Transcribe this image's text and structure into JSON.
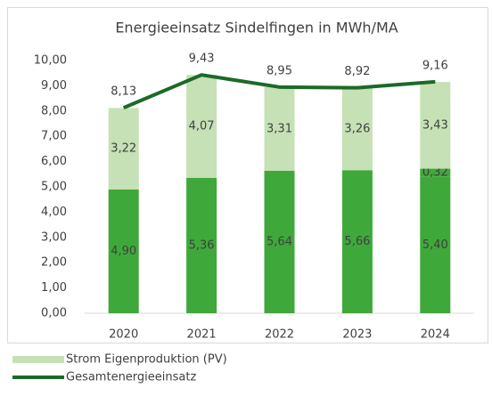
{
  "chart_data": {
    "type": "bar",
    "title": "Energieeinsatz Sindelfingen in MWh/MA",
    "categories": [
      "2020",
      "2021",
      "2022",
      "2023",
      "2024"
    ],
    "stacked": true,
    "series": [
      {
        "color": "#3ea93a",
        "values": [
          4.9,
          5.36,
          5.64,
          5.66,
          5.4
        ],
        "value_labels": [
          "4,90",
          "5,36",
          "5,64",
          "5,66",
          "5,40"
        ]
      },
      {
        "color": "#3ea93a",
        "values": [
          null,
          null,
          null,
          null,
          0.32
        ],
        "value_labels": [
          null,
          null,
          null,
          null,
          "0,32"
        ]
      },
      {
        "name": "Strom Eigenproduktion (PV)",
        "color": "#c6e1b5",
        "values": [
          3.22,
          4.07,
          3.31,
          3.26,
          3.43
        ],
        "value_labels": [
          "3,22",
          "4,07",
          "3,31",
          "3,26",
          "3,43"
        ]
      },
      {
        "name": "Gesamtenergieeinsatz",
        "type": "line",
        "color": "#1c6a28",
        "values": [
          8.13,
          9.43,
          8.95,
          8.92,
          9.16
        ],
        "value_labels": [
          "8,13",
          "9,43",
          "8,95",
          "8,92",
          "9,16"
        ]
      }
    ],
    "ylim": [
      0,
      10
    ],
    "yticks": [
      {
        "value": 0,
        "label": "0,00"
      },
      {
        "value": 1,
        "label": "1,00"
      },
      {
        "value": 2,
        "label": "2,00"
      },
      {
        "value": 3,
        "label": "3,00"
      },
      {
        "value": 4,
        "label": "4,00"
      },
      {
        "value": 5,
        "label": "5,00"
      },
      {
        "value": 6,
        "label": "6,00"
      },
      {
        "value": 7,
        "label": "7,00"
      },
      {
        "value": 8,
        "label": "8,00"
      },
      {
        "value": 9,
        "label": "9,00"
      },
      {
        "value": 10,
        "label": "10,00"
      }
    ],
    "legend": "bottom"
  }
}
